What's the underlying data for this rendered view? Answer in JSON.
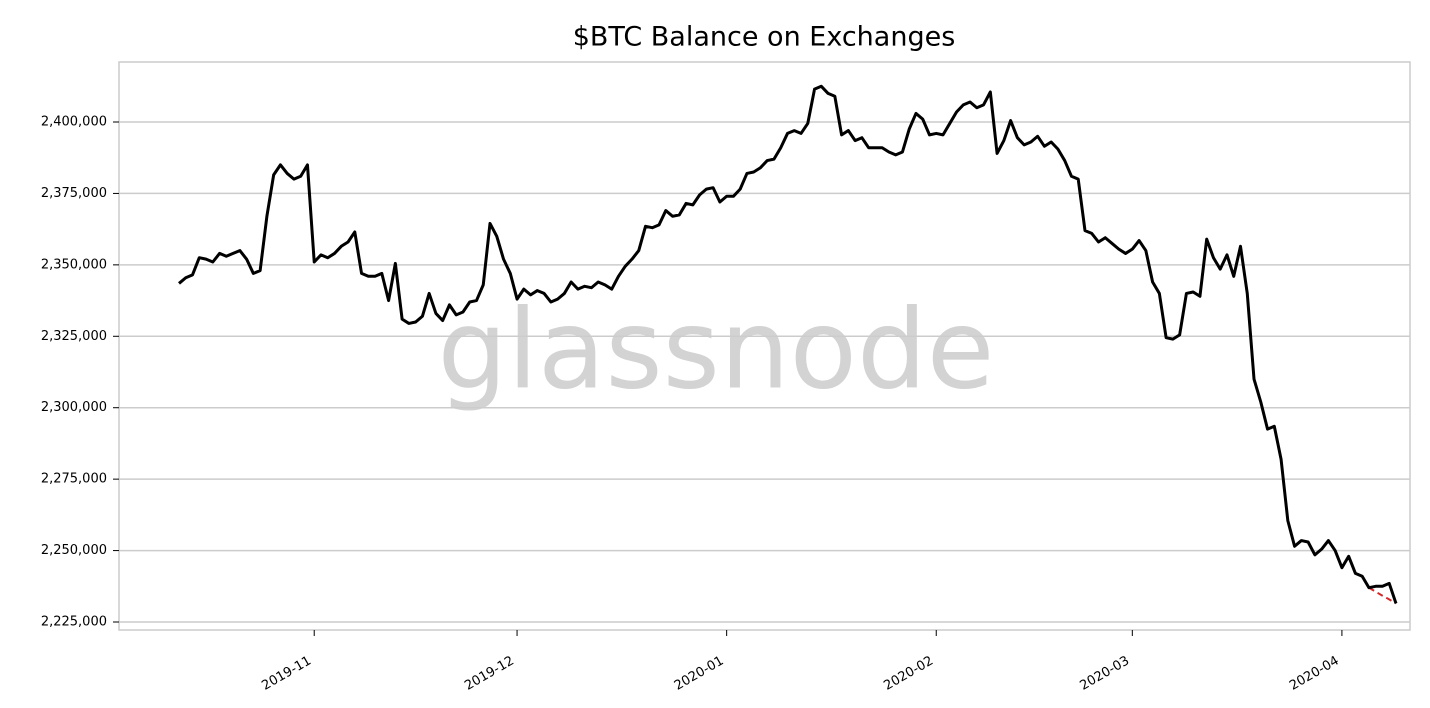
{
  "chart_data": {
    "type": "line",
    "title": "$BTC Balance on Exchanges",
    "watermark": "glassnode",
    "categories": [
      null,
      null,
      null,
      null,
      null,
      null,
      null,
      null,
      null,
      null,
      null,
      null,
      null,
      null,
      null,
      null,
      null,
      null,
      null,
      null,
      "2019-11",
      null,
      null,
      null,
      null,
      null,
      null,
      null,
      null,
      null,
      null,
      null,
      null,
      null,
      null,
      null,
      null,
      null,
      null,
      null,
      null,
      null,
      null,
      null,
      null,
      null,
      null,
      null,
      null,
      null,
      "2019-12",
      null,
      null,
      null,
      null,
      null,
      null,
      null,
      null,
      null,
      null,
      null,
      null,
      null,
      null,
      null,
      null,
      null,
      null,
      null,
      null,
      null,
      null,
      null,
      null,
      null,
      null,
      null,
      null,
      null,
      null,
      "2020-01",
      null,
      null,
      null,
      null,
      null,
      null,
      null,
      null,
      null,
      null,
      null,
      null,
      null,
      null,
      null,
      null,
      null,
      null,
      null,
      null,
      null,
      null,
      null,
      null,
      null,
      null,
      null,
      null,
      null,
      null,
      "2020-02",
      null,
      null,
      null,
      null,
      null,
      null,
      null,
      null,
      null,
      null,
      null,
      null,
      null,
      null,
      null,
      null,
      null,
      null,
      null,
      null,
      null,
      null,
      null,
      null,
      null,
      null,
      null,
      null,
      "2020-03",
      null,
      null,
      null,
      null,
      null,
      null,
      null,
      null,
      null,
      null,
      null,
      null,
      null,
      null,
      null,
      null,
      null,
      null,
      null,
      null,
      null,
      null,
      null,
      null,
      null,
      null,
      null,
      null,
      null,
      null,
      "2020-04",
      null,
      null,
      null,
      null,
      null,
      null,
      null,
      null
    ],
    "series": [
      {
        "color": "#000000",
        "values": [
          2343500,
          2345500,
          2346500,
          2352500,
          2352000,
          2351000,
          2354000,
          2353000,
          2354000,
          2355000,
          2352000,
          2347000,
          2348000,
          2367000,
          2381500,
          2385000,
          2382000,
          2380000,
          2381000,
          2385000,
          2351000,
          2353500,
          2352500,
          2354000,
          2356500,
          2358000,
          2361500,
          2347000,
          2346000,
          2346000,
          2347000,
          2337500,
          2350500,
          2331000,
          2329500,
          2330000,
          2332000,
          2340000,
          2333000,
          2330500,
          2336000,
          2332500,
          2333500,
          2337000,
          2337500,
          2343000,
          2364500,
          2360000,
          2352000,
          2347000,
          2338000,
          2341500,
          2339500,
          2341000,
          2340000,
          2337000,
          2338000,
          2340000,
          2344000,
          2341500,
          2342500,
          2342000,
          2344000,
          2343000,
          2341500,
          2346000,
          2349500,
          2352000,
          2355000,
          2363500,
          2363000,
          2364000,
          2369000,
          2367000,
          2367500,
          2371500,
          2371000,
          2374500,
          2376500,
          2377000,
          2372000,
          2374000,
          2374000,
          2376500,
          2382000,
          2382500,
          2384000,
          2386500,
          2387000,
          2391000,
          2396000,
          2397000,
          2396000,
          2399500,
          2411500,
          2412500,
          2410000,
          2409000,
          2395500,
          2397000,
          2393500,
          2394500,
          2391000,
          2391000,
          2391000,
          2389500,
          2388500,
          2389500,
          2397500,
          2403000,
          2401000,
          2395500,
          2396000,
          2395500,
          2399500,
          2403500,
          2406000,
          2407000,
          2405000,
          2406000,
          2410500,
          2389000,
          2393500,
          2400500,
          2394500,
          2392000,
          2393000,
          2395000,
          2391500,
          2393000,
          2390500,
          2386500,
          2381000,
          2380000,
          2362000,
          2361000,
          2358000,
          2359500,
          2357500,
          2355500,
          2354000,
          2355500,
          2358500,
          2355000,
          2344000,
          2340000,
          2324500,
          2324000,
          2325500,
          2340000,
          2340500,
          2339000,
          2359000,
          2352500,
          2348500,
          2353500,
          2346000,
          2356500,
          2340000,
          2310000,
          2302000,
          2292500,
          2293500,
          2282000,
          2260500,
          2251500,
          2253500,
          2253000,
          2248500,
          2250500,
          2253500,
          2250000,
          2244000,
          2248000,
          2242000,
          2241000,
          2237000,
          2237500,
          2237500,
          2238500,
          2231500
        ]
      },
      {
        "color": "#d62728",
        "dashed": true,
        "values": [
          null,
          null,
          null,
          null,
          null,
          null,
          null,
          null,
          null,
          null,
          null,
          null,
          null,
          null,
          null,
          null,
          null,
          null,
          null,
          null,
          null,
          null,
          null,
          null,
          null,
          null,
          null,
          null,
          null,
          null,
          null,
          null,
          null,
          null,
          null,
          null,
          null,
          null,
          null,
          null,
          null,
          null,
          null,
          null,
          null,
          null,
          null,
          null,
          null,
          null,
          null,
          null,
          null,
          null,
          null,
          null,
          null,
          null,
          null,
          null,
          null,
          null,
          null,
          null,
          null,
          null,
          null,
          null,
          null,
          null,
          null,
          null,
          null,
          null,
          null,
          null,
          null,
          null,
          null,
          null,
          null,
          null,
          null,
          null,
          null,
          null,
          null,
          null,
          null,
          null,
          null,
          null,
          null,
          null,
          null,
          null,
          null,
          null,
          null,
          null,
          null,
          null,
          null,
          null,
          null,
          null,
          null,
          null,
          null,
          null,
          null,
          null,
          null,
          null,
          null,
          null,
          null,
          null,
          null,
          null,
          null,
          null,
          null,
          null,
          null,
          null,
          null,
          null,
          null,
          null,
          null,
          null,
          null,
          null,
          null,
          null,
          null,
          null,
          null,
          null,
          null,
          null,
          null,
          null,
          null,
          null,
          null,
          null,
          null,
          null,
          null,
          null,
          null,
          null,
          null,
          null,
          null,
          null,
          null,
          null,
          null,
          null,
          null,
          null,
          null,
          null,
          null,
          null,
          null,
          null,
          null,
          null,
          null,
          null,
          null,
          null,
          2237000,
          2235600,
          2234200,
          2232900,
          2231500
        ]
      }
    ],
    "ylim": [
      2222200,
      2421000
    ],
    "yticks": [
      {
        "value": 2225000,
        "label": "2,225,000"
      },
      {
        "value": 2250000,
        "label": "2,250,000"
      },
      {
        "value": 2275000,
        "label": "2,275,000"
      },
      {
        "value": 2300000,
        "label": "2,300,000"
      },
      {
        "value": 2325000,
        "label": "2,325,000"
      },
      {
        "value": 2350000,
        "label": "2,350,000"
      },
      {
        "value": 2375000,
        "label": "2,375,000"
      },
      {
        "value": 2400000,
        "label": "2,400,000"
      }
    ],
    "grid": true
  }
}
